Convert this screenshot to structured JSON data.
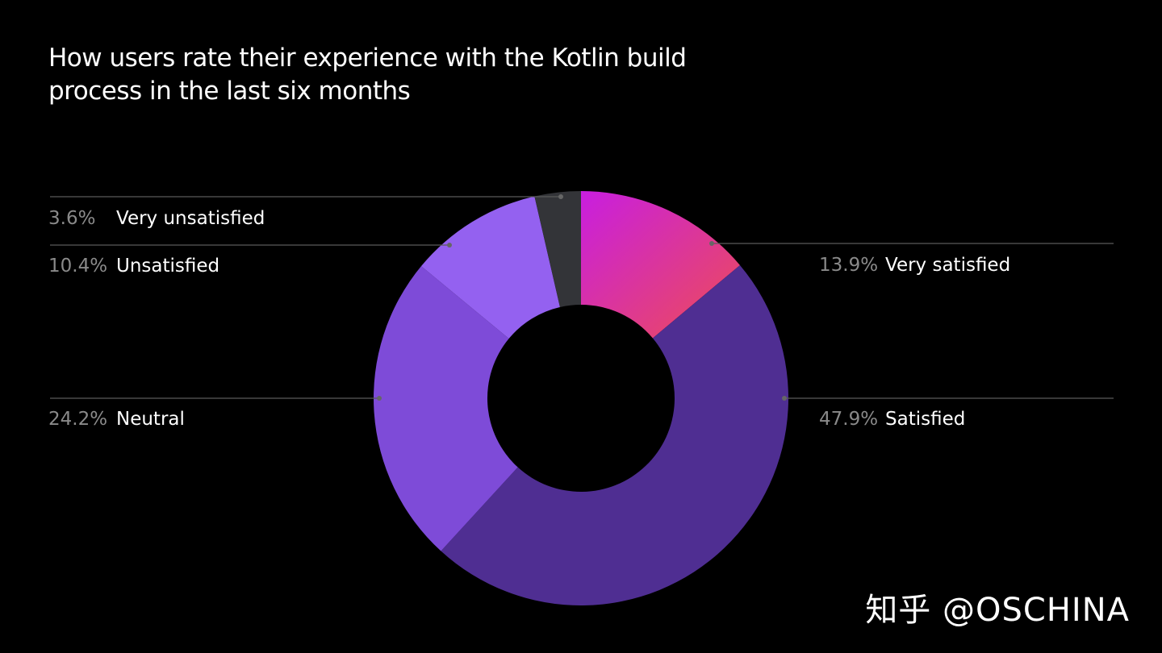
{
  "chart_data": {
    "type": "pie",
    "variant": "donut",
    "title": "How users rate their experience with the Kotlin build process in the last six months",
    "legend": "leader-line labels",
    "slices": [
      {
        "label": "Very satisfied",
        "value": 13.9,
        "display": "13.9%",
        "color": [
          "#c81ee0",
          "#ee4d55"
        ]
      },
      {
        "label": "Satisfied",
        "value": 47.9,
        "display": "47.9%",
        "color": "#4f2e92"
      },
      {
        "label": "Neutral",
        "value": 24.2,
        "display": "24.2%",
        "color": "#7e4bd8"
      },
      {
        "label": "Unsatisfied",
        "value": 10.4,
        "display": "10.4%",
        "color": "#9461f0"
      },
      {
        "label": "Very unsatisfied",
        "value": 3.6,
        "display": "3.6%",
        "color": "#333438"
      }
    ]
  },
  "watermark": "知乎 @OSCHINA"
}
